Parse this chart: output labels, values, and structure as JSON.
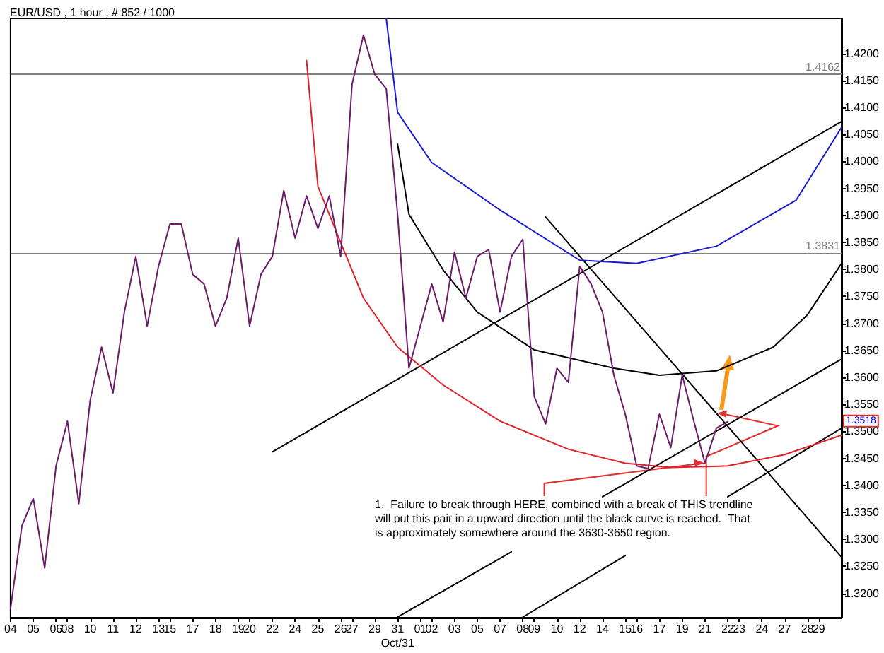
{
  "chart_data": {
    "type": "line",
    "title": "EUR/USD , 1 hour , # 852 / 1000",
    "categories": [
      "04",
      null,
      "05",
      null,
      "06",
      "08",
      null,
      "10",
      null,
      "11",
      null,
      "12",
      null,
      "13",
      "15",
      null,
      "17",
      null,
      "18",
      null,
      "19",
      "20",
      null,
      "22",
      null,
      "24",
      null,
      "25",
      null,
      "26",
      "27",
      null,
      "29",
      null,
      "31\nOct/31",
      null,
      "01",
      "02",
      null,
      "03",
      null,
      "05",
      null,
      "07",
      null,
      "08",
      "09",
      null,
      "10",
      null,
      "12",
      null,
      "14",
      null,
      "15",
      "16",
      null,
      "17",
      null,
      "19",
      null,
      "21",
      null,
      "22",
      "23",
      null,
      "24",
      null,
      "27",
      null,
      "28",
      "29",
      null,
      null
    ],
    "ylim": [
      1.3155,
      1.4265
    ],
    "yticks": [
      {
        "value": 1.32,
        "label": "1.3200"
      },
      {
        "value": 1.325,
        "label": "1.3250"
      },
      {
        "value": 1.33,
        "label": "1.3300"
      },
      {
        "value": 1.335,
        "label": "1.3350"
      },
      {
        "value": 1.34,
        "label": "1.3400"
      },
      {
        "value": 1.345,
        "label": "1.3450"
      },
      {
        "value": 1.35,
        "label": "1.3500"
      },
      {
        "value": 1.355,
        "label": "1.3550"
      },
      {
        "value": 1.36,
        "label": "1.3600"
      },
      {
        "value": 1.365,
        "label": "1.3650"
      },
      {
        "value": 1.37,
        "label": "1.3700"
      },
      {
        "value": 1.375,
        "label": "1.3750"
      },
      {
        "value": 1.38,
        "label": "1.3800"
      },
      {
        "value": 1.385,
        "label": "1.3850"
      },
      {
        "value": 1.39,
        "label": "1.3900"
      },
      {
        "value": 1.395,
        "label": "1.3950"
      },
      {
        "value": 1.4,
        "label": "1.4000"
      },
      {
        "value": 1.405,
        "label": "1.4050"
      },
      {
        "value": 1.41,
        "label": "1.4100"
      },
      {
        "value": 1.415,
        "label": "1.4150"
      },
      {
        "value": 1.42,
        "label": "1.4200"
      }
    ],
    "grid": false,
    "marker": "none",
    "line_style": "solid",
    "series": [
      {
        "color": "#6a1b6a",
        "values": [
          1.3172,
          1.3325,
          1.3376,
          1.3247,
          1.3436,
          1.3519,
          1.3366,
          1.3558,
          1.3656,
          1.3571,
          1.3721,
          1.3824,
          1.3695,
          1.3806,
          1.3884,
          1.3884,
          1.3791,
          1.3773,
          1.3695,
          1.3747,
          1.3858,
          1.3695,
          1.3791,
          1.3824,
          1.3946,
          1.3858,
          1.3936,
          1.3876,
          1.3936,
          1.3824,
          1.4143,
          1.4234,
          1.4161,
          1.4135,
          1.3902,
          1.3617,
          1.3695,
          1.3773,
          1.3703,
          1.3832,
          1.3747,
          1.3824,
          1.3837,
          1.3721,
          1.3824,
          1.3856,
          1.3565,
          1.3514,
          1.3617,
          1.3591,
          1.3806,
          1.3773,
          1.3721,
          1.3604,
          1.3532,
          1.3436,
          1.3431,
          1.3532,
          1.347,
          1.3604,
          1.3521,
          1.3441,
          1.3506,
          1.3518,
          null,
          null,
          null,
          null,
          null,
          null,
          null,
          null,
          null,
          null
        ]
      },
      {
        "color": "#e0202a",
        "values": [
          null,
          null,
          null,
          null,
          null,
          null,
          null,
          null,
          null,
          null,
          null,
          null,
          null,
          null,
          null,
          null,
          null,
          null,
          null,
          null,
          null,
          null,
          null,
          null,
          null,
          null,
          1.4187,
          1.3954,
          null,
          1.385,
          null,
          1.3747,
          null,
          null,
          1.3656,
          null,
          null,
          null,
          1.3586,
          null,
          null,
          null,
          null,
          1.3519,
          null,
          null,
          null,
          null,
          null,
          1.3467,
          null,
          null,
          null,
          null,
          1.3441,
          null,
          null,
          null,
          1.3433,
          null,
          null,
          null,
          null,
          1.3436,
          null,
          null,
          null,
          null,
          1.3457,
          null,
          null,
          null,
          null,
          1.3493
        ]
      },
      {
        "color": "#000000",
        "values": [
          null,
          null,
          null,
          null,
          null,
          null,
          null,
          null,
          null,
          null,
          null,
          null,
          null,
          null,
          null,
          null,
          null,
          null,
          null,
          null,
          null,
          null,
          null,
          null,
          null,
          null,
          null,
          null,
          null,
          null,
          null,
          null,
          null,
          null,
          1.4032,
          1.3902,
          null,
          null,
          1.3799,
          null,
          null,
          1.3721,
          null,
          null,
          null,
          null,
          1.3651,
          null,
          null,
          null,
          null,
          null,
          null,
          1.3617,
          null,
          null,
          null,
          1.3604,
          null,
          null,
          null,
          null,
          1.3612,
          null,
          null,
          null,
          null,
          1.3656,
          null,
          null,
          1.3716,
          null,
          null,
          1.3811
        ]
      },
      {
        "color": "#1a1ad0",
        "values": [
          null,
          null,
          null,
          null,
          null,
          null,
          null,
          null,
          null,
          null,
          null,
          null,
          null,
          null,
          null,
          null,
          null,
          null,
          null,
          null,
          null,
          null,
          null,
          null,
          null,
          null,
          null,
          null,
          null,
          null,
          null,
          null,
          null,
          1.4265,
          1.4091,
          null,
          null,
          1.3998,
          null,
          null,
          null,
          null,
          null,
          1.391,
          null,
          null,
          null,
          null,
          null,
          null,
          1.3817,
          null,
          null,
          null,
          null,
          1.3811,
          null,
          null,
          null,
          null,
          null,
          null,
          1.3843,
          null,
          null,
          null,
          null,
          null,
          null,
          1.3928,
          null,
          null,
          null,
          1.4063
        ]
      },
      {
        "color": "#000000",
        "values": [
          null,
          null,
          null,
          null,
          null,
          null,
          null,
          null,
          null,
          null,
          null,
          null,
          null,
          null,
          null,
          null,
          null,
          null,
          null,
          null,
          null,
          null,
          null,
          1.3462,
          null,
          null,
          null,
          null,
          null,
          null,
          null,
          null,
          null,
          null,
          null,
          null,
          null,
          null,
          null,
          null,
          null,
          null,
          null,
          null,
          null,
          null,
          null,
          null,
          null,
          null,
          null,
          null,
          null,
          null,
          null,
          null,
          null,
          null,
          null,
          null,
          null,
          null,
          null,
          null,
          null,
          null,
          null,
          null,
          null,
          null,
          null,
          null,
          null,
          1.4074
        ]
      },
      {
        "color": "#000000",
        "values": [
          null,
          null,
          null,
          null,
          null,
          null,
          null,
          null,
          null,
          null,
          null,
          null,
          null,
          null,
          null,
          null,
          null,
          null,
          null,
          null,
          null,
          null,
          null,
          null,
          null,
          null,
          null,
          null,
          null,
          null,
          null,
          null,
          null,
          null,
          null,
          null,
          null,
          null,
          null,
          null,
          null,
          null,
          null,
          null,
          null,
          null,
          null,
          1.3897,
          null,
          null,
          null,
          null,
          null,
          null,
          null,
          null,
          null,
          null,
          null,
          null,
          null,
          null,
          null,
          null,
          null,
          null,
          null,
          null,
          null,
          null,
          null,
          null,
          null,
          1.3267
        ]
      },
      {
        "color": "#000000",
        "values": [
          null,
          null,
          null,
          null,
          null,
          null,
          null,
          null,
          null,
          null,
          null,
          null,
          null,
          null,
          null,
          null,
          null,
          null,
          null,
          null,
          null,
          null,
          null,
          null,
          null,
          null,
          null,
          null,
          null,
          null,
          null,
          null,
          null,
          null,
          null,
          null,
          null,
          null,
          null,
          null,
          null,
          null,
          null,
          null,
          null,
          null,
          null,
          null,
          null,
          null,
          null,
          null,
          1.3379,
          null,
          null,
          null,
          null,
          null,
          null,
          null,
          null,
          null,
          null,
          null,
          null,
          null,
          null,
          null,
          null,
          null,
          null,
          null,
          null,
          1.3634
        ]
      },
      {
        "color": "#000000",
        "values": [
          null,
          null,
          null,
          null,
          null,
          null,
          null,
          null,
          null,
          null,
          null,
          null,
          null,
          null,
          null,
          null,
          null,
          null,
          null,
          null,
          null,
          null,
          null,
          null,
          null,
          null,
          null,
          null,
          null,
          null,
          null,
          null,
          null,
          null,
          null,
          null,
          null,
          null,
          null,
          null,
          null,
          null,
          null,
          null,
          null,
          null,
          null,
          null,
          null,
          null,
          null,
          null,
          null,
          null,
          null,
          null,
          null,
          null,
          null,
          null,
          null,
          null,
          null,
          1.3379,
          null,
          null,
          null,
          null,
          null,
          null,
          null,
          null,
          null,
          1.3506
        ]
      },
      {
        "color": "#000000",
        "values": [
          null,
          null,
          null,
          null,
          null,
          null,
          null,
          null,
          null,
          null,
          null,
          null,
          null,
          null,
          null,
          null,
          null,
          null,
          null,
          null,
          null,
          null,
          null,
          null,
          null,
          null,
          null,
          null,
          null,
          null,
          null,
          null,
          null,
          null,
          1.3156,
          null,
          null,
          null,
          null,
          null,
          null,
          null,
          null,
          null,
          1.3277,
          null,
          null,
          null,
          null,
          null,
          null,
          null,
          null,
          null,
          null,
          null,
          null,
          null,
          null,
          null,
          null,
          null,
          null,
          null,
          null,
          null,
          null,
          null,
          null,
          null,
          null,
          null,
          null,
          null
        ]
      },
      {
        "color": "#000000",
        "values": [
          null,
          null,
          null,
          null,
          null,
          null,
          null,
          null,
          null,
          null,
          null,
          null,
          null,
          null,
          null,
          null,
          null,
          null,
          null,
          null,
          null,
          null,
          null,
          null,
          null,
          null,
          null,
          null,
          null,
          null,
          null,
          null,
          null,
          null,
          null,
          null,
          null,
          null,
          null,
          null,
          null,
          null,
          null,
          null,
          null,
          1.3156,
          null,
          null,
          null,
          null,
          null,
          null,
          null,
          null,
          1.327,
          null,
          null,
          null,
          null,
          null,
          null,
          null,
          null,
          null,
          null,
          null,
          null,
          null,
          null,
          null,
          null,
          null,
          null,
          null
        ]
      }
    ],
    "ref_lines": [
      {
        "axis": "y",
        "value": 1.4162,
        "label": "1.4162",
        "color": "#808080"
      },
      {
        "axis": "y",
        "value": 1.3831,
        "label": "1.3831",
        "color": "#808080"
      }
    ],
    "annotations": [
      {
        "text": "1.  Failure to break through HERE, combined with a break of",
        "x": "21",
        "y": 1.3441
      },
      {
        "text": "THIS trendline",
        "y": 1.3534
      },
      "will put this pair in a upward direction until the black curve is reached.  That",
      "is approximately somewhere around the 3630-3650 region.",
      "1.3518"
    ]
  }
}
